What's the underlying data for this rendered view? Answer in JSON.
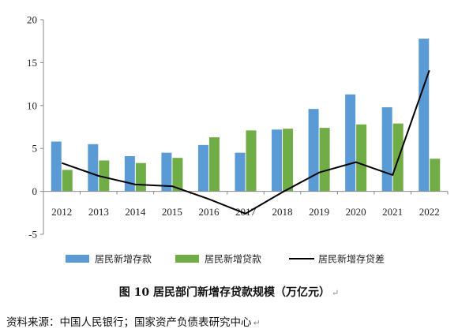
{
  "chart_data": {
    "type": "bar",
    "categories": [
      "2012",
      "2013",
      "2014",
      "2015",
      "2016",
      "2017",
      "2018",
      "2019",
      "2020",
      "2021",
      "2022"
    ],
    "series": [
      {
        "name": "居民新增存款",
        "type": "bar",
        "color": "#5B9BD5",
        "values": [
          5.8,
          5.5,
          4.1,
          4.5,
          5.4,
          4.5,
          7.2,
          9.6,
          11.3,
          9.8,
          17.8
        ]
      },
      {
        "name": "居民新增贷款",
        "type": "bar",
        "color": "#70AD47",
        "values": [
          2.5,
          3.6,
          3.3,
          3.9,
          6.3,
          7.1,
          7.3,
          7.4,
          7.8,
          7.9,
          3.8
        ]
      },
      {
        "name": "居民新增存贷差",
        "type": "line",
        "color": "#000000",
        "values": [
          3.3,
          1.8,
          0.8,
          0.6,
          -0.9,
          -2.6,
          -0.1,
          2.2,
          3.4,
          1.9,
          14.1
        ]
      }
    ],
    "ylim": [
      -5,
      20
    ],
    "yticks": [
      -5,
      0,
      5,
      10,
      15,
      20
    ],
    "legend_position": "bottom",
    "grid": false
  },
  "caption": "图 10  居民部门新增存贷款规模（万亿元）",
  "source": "资料来源：中国人民银行；国家资产负债表研究中心"
}
